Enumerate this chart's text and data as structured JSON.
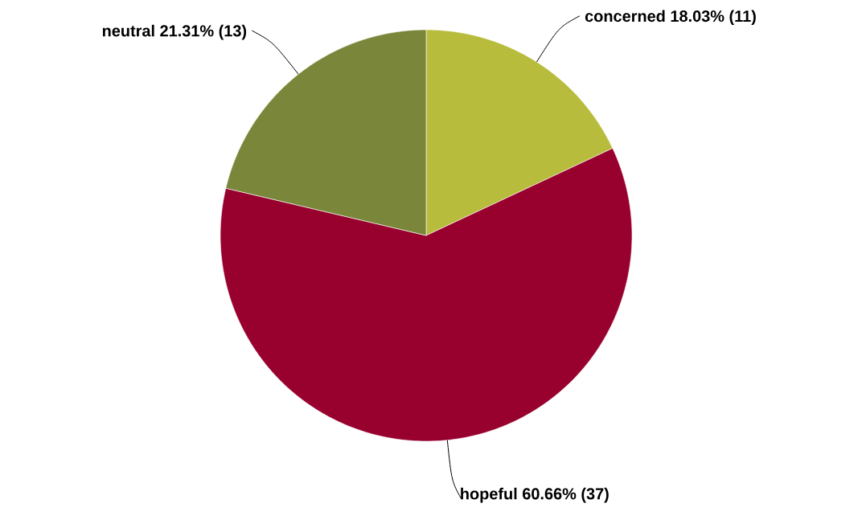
{
  "chart_data": {
    "type": "pie",
    "categories": [
      "concerned",
      "hopeful",
      "neutral"
    ],
    "values": [
      11,
      37,
      13
    ],
    "value_labels": [
      "18.03% (11)",
      "60.66% (37)",
      "21.31% (13)"
    ],
    "colors": [
      "#b8bc3c",
      "#98002e",
      "#7a8639"
    ]
  }
}
